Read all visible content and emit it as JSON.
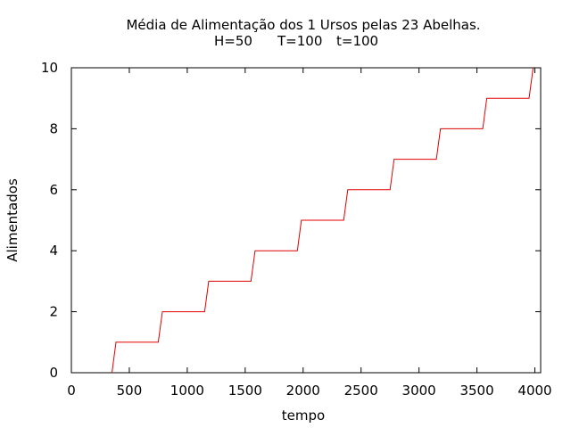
{
  "chart_data": {
    "type": "line",
    "title": "Média de Alimentação dos 1 Ursos pelas 23 Abelhas.",
    "subtitle_parts": [
      "H=50",
      "T=100",
      "t=100"
    ],
    "xlabel": "tempo",
    "ylabel": "Alimentados",
    "xlim": [
      0,
      4050
    ],
    "ylim": [
      0,
      10
    ],
    "x_ticks": [
      0,
      500,
      1000,
      1500,
      2000,
      2500,
      3000,
      3500,
      4000
    ],
    "x_tick_labels": [
      "0",
      "500",
      "1000",
      "1500",
      "2000",
      "2500",
      "3000",
      "3500",
      "4000"
    ],
    "y_ticks": [
      0,
      2,
      4,
      6,
      8,
      10
    ],
    "y_tick_labels": [
      "0",
      "2",
      "4",
      "6",
      "8",
      "10"
    ],
    "grid": false,
    "legend": "none",
    "series": [
      {
        "color": "#e00000",
        "x": [
          350,
          385,
          750,
          785,
          1150,
          1185,
          1550,
          1585,
          1950,
          1985,
          2350,
          2385,
          2750,
          2785,
          3150,
          3185,
          3550,
          3585,
          3950,
          3985
        ],
        "y": [
          0,
          1,
          1,
          2,
          2,
          3,
          3,
          4,
          4,
          5,
          5,
          6,
          6,
          7,
          7,
          8,
          8,
          9,
          9,
          10
        ]
      }
    ]
  }
}
